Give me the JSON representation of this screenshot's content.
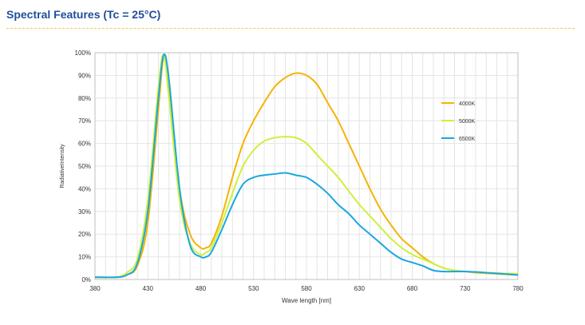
{
  "page_title": "Spectral Features (Tc = 25°C)",
  "chart_data": {
    "type": "line",
    "xlabel": "Wave length [nm]",
    "ylabel": "RadiativeIntensity",
    "xlim": [
      380,
      780
    ],
    "ylim": [
      0,
      100
    ],
    "xticks": [
      380,
      430,
      480,
      530,
      580,
      630,
      680,
      730,
      780
    ],
    "yticks": [
      "0%",
      "10%",
      "20%",
      "30%",
      "40%",
      "50%",
      "60%",
      "70%",
      "80%",
      "90%",
      "100%"
    ],
    "grid": true,
    "legend_position": "right",
    "series": [
      {
        "name": "4000K",
        "color": "#f5b400",
        "x": [
          380,
          400,
          410,
          420,
          430,
          440,
          445,
          450,
          460,
          470,
          480,
          485,
          490,
          500,
          510,
          520,
          530,
          540,
          550,
          560,
          570,
          580,
          590,
          600,
          610,
          620,
          630,
          640,
          650,
          660,
          670,
          680,
          690,
          700,
          710,
          720,
          730,
          740,
          760,
          780
        ],
        "y": [
          1,
          1,
          2,
          6,
          25,
          75,
          98,
          85,
          40,
          20,
          14,
          14,
          16,
          28,
          45,
          60,
          70,
          78,
          85,
          89,
          91,
          90,
          86,
          78,
          70,
          60,
          50,
          40,
          31,
          24,
          18,
          14,
          10,
          7,
          5,
          4,
          3.5,
          3,
          2.5,
          2
        ]
      },
      {
        "name": "5000K",
        "color": "#cdf03c",
        "x": [
          380,
          400,
          410,
          420,
          430,
          440,
          445,
          450,
          460,
          470,
          480,
          485,
          490,
          500,
          510,
          520,
          530,
          540,
          550,
          560,
          570,
          580,
          590,
          600,
          610,
          620,
          630,
          640,
          650,
          660,
          670,
          680,
          690,
          700,
          710,
          720,
          730,
          750,
          780
        ],
        "y": [
          1,
          1,
          3,
          9,
          35,
          85,
          99,
          80,
          35,
          16,
          11,
          12,
          14,
          25,
          38,
          50,
          57,
          61,
          62.5,
          63,
          62.5,
          60,
          55,
          50,
          45,
          39,
          33,
          28,
          23,
          18,
          14,
          11,
          9,
          7,
          5,
          4,
          3.5,
          3,
          2.5
        ]
      },
      {
        "name": "6500K",
        "color": "#1aa7e0",
        "x": [
          380,
          400,
          410,
          420,
          430,
          440,
          445,
          450,
          460,
          470,
          480,
          485,
          490,
          500,
          510,
          520,
          530,
          540,
          550,
          560,
          570,
          580,
          590,
          600,
          610,
          620,
          630,
          640,
          650,
          660,
          670,
          680,
          690,
          700,
          710,
          720,
          730,
          750,
          780
        ],
        "y": [
          1,
          1,
          2,
          7,
          30,
          80,
          99,
          88,
          40,
          15,
          10,
          10,
          12,
          22,
          33,
          42,
          45,
          46,
          46.5,
          47,
          46,
          45,
          42,
          38,
          33,
          29,
          24,
          20,
          16,
          12,
          9,
          7.5,
          6,
          4,
          3.5,
          3.5,
          3.5,
          3,
          2
        ]
      }
    ]
  }
}
